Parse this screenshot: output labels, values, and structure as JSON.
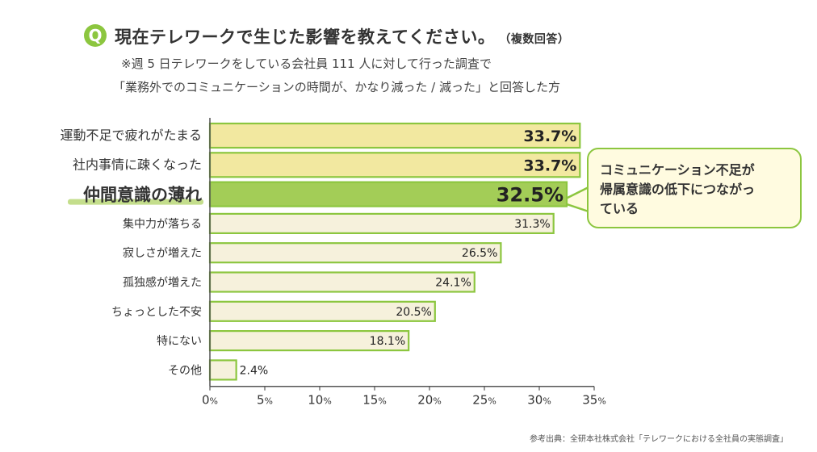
{
  "header": {
    "q_mark": "Q",
    "title": "現在テレワークで生じた影響を教えてください。",
    "title_note": "（複数回答）",
    "subtitle_1": "※週 5 日テレワークをしている会社員 111 人に対して行った調査で",
    "subtitle_2": "「業務外でのコミュニケーションの時間が、かなり減った / 減った」と回答した方"
  },
  "callout": {
    "line_1": "コミュニケーション不足が",
    "line_2": "帰属意識の低下につながっ",
    "line_3": "ている"
  },
  "source": "参考出典：全研本社株式会社「テレワークにおける全社員の実態調査」",
  "colors": {
    "bar_top": "#f2e8a0",
    "bar_highlight": "#a3cd57",
    "bar_normal": "#f6f1dc",
    "bar_border": "#8cc63f",
    "highlight_label_underline": "#c4de8c"
  },
  "chart_data": {
    "type": "bar",
    "orientation": "horizontal",
    "categories": [
      "運動不足で疲れがたまる",
      "社内事情に疎くなった",
      "仲間意識の薄れ",
      "集中力が落ちる",
      "寂しさが増えた",
      "孤独感が増えた",
      "ちょっとした不安",
      "特にない",
      "その他"
    ],
    "values": [
      33.7,
      33.7,
      32.5,
      31.3,
      26.5,
      24.1,
      20.5,
      18.1,
      2.4
    ],
    "value_labels": [
      "33.7%",
      "33.7%",
      "32.5%",
      "31.3%",
      "26.5%",
      "24.1%",
      "20.5%",
      "18.1%",
      "2.4%"
    ],
    "highlight_index": 2,
    "emphasized_indices": [
      0,
      1
    ],
    "xlim": [
      0,
      35
    ],
    "ticks": [
      {
        "num": "0",
        "unit": "%"
      },
      {
        "num": "5",
        "unit": "%"
      },
      {
        "num": "10",
        "unit": "%"
      },
      {
        "num": "15",
        "unit": "%"
      },
      {
        "num": "20",
        "unit": "%"
      },
      {
        "num": "25",
        "unit": "%"
      },
      {
        "num": "30",
        "unit": "%"
      },
      {
        "num": "35",
        "unit": "%"
      }
    ],
    "tick_values": [
      0,
      5,
      10,
      15,
      20,
      25,
      30,
      35
    ],
    "grid": false,
    "legend": "none"
  }
}
